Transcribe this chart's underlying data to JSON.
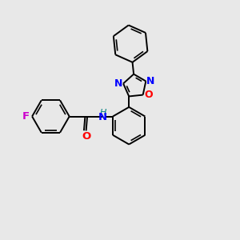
{
  "bg": "#e8e8e8",
  "bond_color": "#000000",
  "bw": 1.4,
  "colors": {
    "F": "#cc00cc",
    "O": "#ff0000",
    "N": "#0000ff",
    "H_color": "#008080",
    "C": "#000000"
  },
  "fs": 9.5
}
